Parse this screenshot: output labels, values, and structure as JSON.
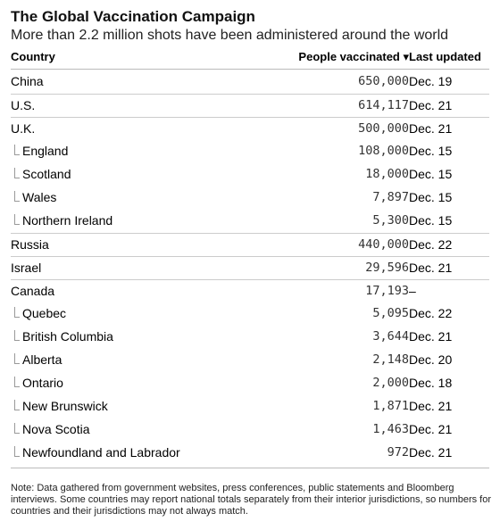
{
  "title": "The Global Vaccination Campaign",
  "subtitle": "More than 2.2 million shots have been administered around the world",
  "columns": {
    "country": "Country",
    "people": "People vaccinated ▾",
    "updated": "Last updated"
  },
  "rows": [
    {
      "name": "China",
      "value": "650,000",
      "date": "Dec. 19",
      "sub": false
    },
    {
      "name": "U.S.",
      "value": "614,117",
      "date": "Dec. 21",
      "sub": false
    },
    {
      "name": "U.K.",
      "value": "500,000",
      "date": "Dec. 21",
      "sub": false
    },
    {
      "name": "England",
      "value": "108,000",
      "date": "Dec. 15",
      "sub": true
    },
    {
      "name": "Scotland",
      "value": "18,000",
      "date": "Dec. 15",
      "sub": true
    },
    {
      "name": "Wales",
      "value": "7,897",
      "date": "Dec. 15",
      "sub": true
    },
    {
      "name": "Northern Ireland",
      "value": "5,300",
      "date": "Dec. 15",
      "sub": true
    },
    {
      "name": "Russia",
      "value": "440,000",
      "date": "Dec. 22",
      "sub": false
    },
    {
      "name": "Israel",
      "value": "29,596",
      "date": "Dec. 21",
      "sub": false
    },
    {
      "name": "Canada",
      "value": "17,193",
      "date": "–",
      "sub": false
    },
    {
      "name": "Quebec",
      "value": "5,095",
      "date": "Dec. 22",
      "sub": true
    },
    {
      "name": "British Columbia",
      "value": "3,644",
      "date": "Dec. 21",
      "sub": true
    },
    {
      "name": "Alberta",
      "value": "2,148",
      "date": "Dec. 20",
      "sub": true
    },
    {
      "name": "Ontario",
      "value": "2,000",
      "date": "Dec. 18",
      "sub": true
    },
    {
      "name": "New Brunswick",
      "value": "1,871",
      "date": "Dec. 21",
      "sub": true
    },
    {
      "name": "Nova Scotia",
      "value": "1,463",
      "date": "Dec. 21",
      "sub": true
    },
    {
      "name": "Newfoundland and Labrador",
      "value": "972",
      "date": "Dec. 21",
      "sub": true
    }
  ],
  "note": "Note: Data gathered from government websites, press conferences, public statements and Bloomberg interviews. Some countries may report national totals separately from their interior jurisdictions, so numbers for countries and their jurisdictions may not always match."
}
